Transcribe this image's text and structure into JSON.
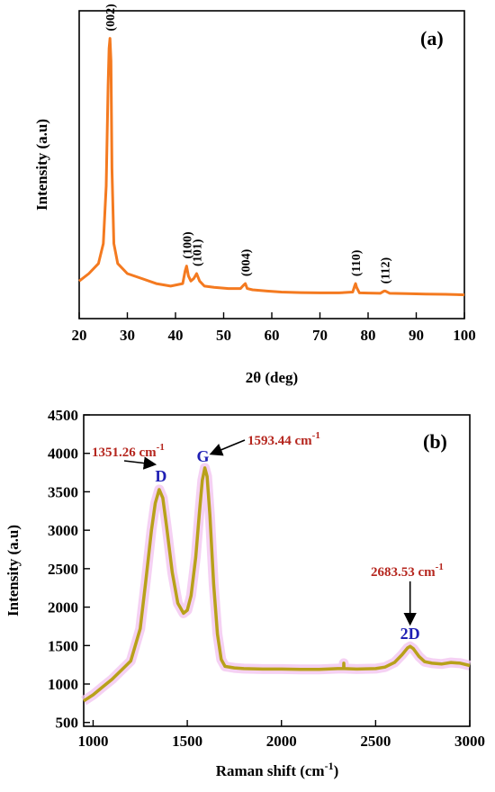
{
  "colors": {
    "xrd_line": "#f47a20",
    "raman_line": "#b8a11a",
    "raman_glow": "#f3c6f0",
    "annotation_value": "#b5261e",
    "annotation_band": "#1f1fb4",
    "axis": "#000000"
  },
  "chart_data": [
    {
      "type": "line",
      "panel_label": "(a)",
      "xlabel": "2θ (deg)",
      "ylabel": "Intensity (a.u)",
      "xlim": [
        20,
        100
      ],
      "x_ticks": [
        20,
        30,
        40,
        50,
        60,
        70,
        80,
        90,
        100
      ],
      "y_ticks_visible": false,
      "peak_labels": [
        {
          "text": "(002)",
          "x": 26.4
        },
        {
          "text": "(100)",
          "x": 42.3
        },
        {
          "text": "(101)",
          "x": 44.4
        },
        {
          "text": "(004)",
          "x": 54.5
        },
        {
          "text": "(110)",
          "x": 77.4
        },
        {
          "text": "(112)",
          "x": 83.5
        }
      ],
      "series": [
        {
          "x": [
            20,
            22,
            24,
            25,
            25.6,
            26,
            26.2,
            26.4,
            26.6,
            26.8,
            27.2,
            28,
            30,
            33,
            36,
            39,
            41.5,
            42,
            42.3,
            42.7,
            43.2,
            43.8,
            44.4,
            45,
            46,
            48,
            51,
            53.5,
            54.2,
            54.5,
            54.9,
            56,
            59,
            62,
            66,
            70,
            74,
            76.8,
            77.2,
            77.4,
            77.6,
            78.2,
            80,
            82.5,
            83.3,
            83.6,
            84.5,
            88,
            92,
            96,
            100
          ],
          "y": [
            7,
            10,
            14,
            22,
            45,
            85,
            100,
            104,
            95,
            52,
            22,
            14,
            10,
            8,
            6,
            5,
            6,
            11,
            13,
            9,
            7,
            8,
            10,
            7,
            5,
            4.5,
            4,
            4,
            5.5,
            6,
            4,
            3.5,
            3,
            2.6,
            2.4,
            2.3,
            2.3,
            2.6,
            5,
            6,
            4.5,
            2.3,
            2.2,
            2.1,
            3,
            3,
            2.1,
            2,
            1.8,
            1.7,
            1.5
          ]
        }
      ]
    },
    {
      "type": "line",
      "panel_label": "(b)",
      "xlabel": "Raman shift (cm",
      "xlabel_sup": "-1",
      "xlabel_end": ")",
      "ylabel": "Intensity (a.u)",
      "xlim": [
        950,
        3000
      ],
      "ylim": [
        450,
        4500
      ],
      "x_ticks": [
        1000,
        1500,
        2000,
        2500,
        3000
      ],
      "y_ticks": [
        500,
        1000,
        1500,
        2000,
        2500,
        3000,
        3500,
        4000,
        4500
      ],
      "annotations": [
        {
          "band": "D",
          "value": "1351.26 cm",
          "sup": "-1",
          "peak_x": 1351,
          "peak_y": 3530
        },
        {
          "band": "G",
          "value": "1593.44 cm",
          "sup": "-1",
          "peak_x": 1593,
          "peak_y": 3810
        },
        {
          "band": "2D",
          "value": "2683.53 cm",
          "sup": "-1",
          "peak_x": 2683,
          "peak_y": 1490
        }
      ],
      "series": [
        {
          "x": [
            950,
            1000,
            1050,
            1100,
            1150,
            1200,
            1250,
            1280,
            1310,
            1330,
            1351,
            1370,
            1390,
            1420,
            1450,
            1480,
            1500,
            1520,
            1545,
            1565,
            1580,
            1593,
            1605,
            1620,
            1640,
            1660,
            1680,
            1700,
            1750,
            1800,
            1900,
            2000,
            2100,
            2200,
            2300,
            2330,
            2331,
            2332,
            2333,
            2400,
            2500,
            2550,
            2600,
            2640,
            2670,
            2683,
            2700,
            2730,
            2760,
            2800,
            2850,
            2900,
            2950,
            3000
          ],
          "y": [
            780,
            860,
            960,
            1060,
            1180,
            1300,
            1720,
            2350,
            3000,
            3350,
            3530,
            3420,
            3050,
            2450,
            2050,
            1920,
            1960,
            2150,
            2650,
            3250,
            3650,
            3810,
            3700,
            3200,
            2300,
            1650,
            1320,
            1230,
            1210,
            1200,
            1195,
            1195,
            1190,
            1190,
            1200,
            1200,
            1270,
            1200,
            1200,
            1195,
            1200,
            1220,
            1280,
            1380,
            1470,
            1490,
            1460,
            1360,
            1290,
            1270,
            1260,
            1280,
            1270,
            1240
          ]
        }
      ]
    }
  ]
}
